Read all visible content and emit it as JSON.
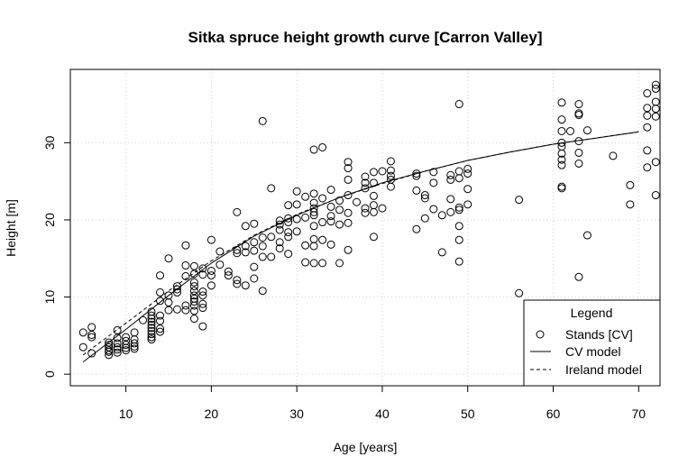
{
  "chart_data": {
    "type": "scatter",
    "title": "Sitka spruce height growth curve [Carron Valley]",
    "xlabel": "Age [years]",
    "ylabel": "Height [m]",
    "xlim": [
      3.5,
      72.5
    ],
    "ylim": [
      -1.5,
      39.5
    ],
    "xticks": [
      10,
      20,
      30,
      40,
      50,
      60,
      70
    ],
    "yticks": [
      0,
      10,
      20,
      30
    ],
    "grid": true,
    "legend": {
      "title": "Legend",
      "position": "bottom-right",
      "entries": [
        {
          "label": "Stands [CV]",
          "symbol": "circle"
        },
        {
          "label": "CV model",
          "symbol": "solid-line"
        },
        {
          "label": "Ireland model",
          "symbol": "dashed-line"
        }
      ]
    },
    "series": [
      {
        "name": "Stands [CV]",
        "kind": "points",
        "points": [
          [
            5,
            5.4
          ],
          [
            5,
            3.5
          ],
          [
            6,
            6.1
          ],
          [
            6,
            5.1
          ],
          [
            6,
            4.8
          ],
          [
            6,
            2.7
          ],
          [
            8,
            4.1
          ],
          [
            8,
            3.8
          ],
          [
            8,
            3.5
          ],
          [
            8,
            3.1
          ],
          [
            8,
            2.9
          ],
          [
            8,
            2.5
          ],
          [
            9,
            5.7
          ],
          [
            9,
            4.7
          ],
          [
            9,
            4.0
          ],
          [
            9,
            3.5
          ],
          [
            9,
            3.2
          ],
          [
            9,
            2.8
          ],
          [
            10,
            4.8
          ],
          [
            10,
            4.3
          ],
          [
            10,
            3.8
          ],
          [
            10,
            3.4
          ],
          [
            10,
            3.1
          ],
          [
            11,
            5.4
          ],
          [
            11,
            4.5
          ],
          [
            11,
            4.0
          ],
          [
            11,
            3.6
          ],
          [
            11,
            3.3
          ],
          [
            12,
            7.0
          ],
          [
            13,
            8.1
          ],
          [
            13,
            7.6
          ],
          [
            13,
            7.2
          ],
          [
            13,
            6.8
          ],
          [
            13,
            6.4
          ],
          [
            13,
            6.0
          ],
          [
            13,
            5.6
          ],
          [
            13,
            5.2
          ],
          [
            13,
            4.8
          ],
          [
            13,
            4.5
          ],
          [
            14,
            12.8
          ],
          [
            14,
            10.6
          ],
          [
            14,
            9.5
          ],
          [
            14,
            7.6
          ],
          [
            14,
            6.9
          ],
          [
            14,
            5.9
          ],
          [
            14,
            5.5
          ],
          [
            15,
            15.0
          ],
          [
            15,
            10.2
          ],
          [
            15,
            9.3
          ],
          [
            15,
            8.3
          ],
          [
            16,
            11.4
          ],
          [
            16,
            11.0
          ],
          [
            16,
            10.6
          ],
          [
            16,
            8.4
          ],
          [
            17,
            16.7
          ],
          [
            17,
            14.1
          ],
          [
            17,
            12.7
          ],
          [
            17,
            8.9
          ],
          [
            17,
            8.3
          ],
          [
            18,
            14.0
          ],
          [
            18,
            13.0
          ],
          [
            18,
            11.9
          ],
          [
            18,
            11.4
          ],
          [
            18,
            10.8
          ],
          [
            18,
            10.2
          ],
          [
            18,
            9.8
          ],
          [
            18,
            9.4
          ],
          [
            18,
            8.9
          ],
          [
            18,
            8.2
          ],
          [
            18,
            7.2
          ],
          [
            19,
            13.7
          ],
          [
            19,
            12.9
          ],
          [
            19,
            10.7
          ],
          [
            19,
            10.2
          ],
          [
            19,
            9.1
          ],
          [
            19,
            8.6
          ],
          [
            19,
            6.2
          ],
          [
            20,
            17.4
          ],
          [
            20,
            13.4
          ],
          [
            20,
            12.8
          ],
          [
            20,
            11.5
          ],
          [
            21,
            15.9
          ],
          [
            21,
            14.2
          ],
          [
            22,
            13.3
          ],
          [
            22,
            12.8
          ],
          [
            23,
            21.0
          ],
          [
            23,
            16.1
          ],
          [
            23,
            15.7
          ],
          [
            23,
            12.2
          ],
          [
            23,
            11.7
          ],
          [
            24,
            19.2
          ],
          [
            24,
            16.6
          ],
          [
            24,
            15.8
          ],
          [
            24,
            11.5
          ],
          [
            25,
            19.5
          ],
          [
            25,
            17.1
          ],
          [
            25,
            16.0
          ],
          [
            25,
            13.9
          ],
          [
            25,
            12.4
          ],
          [
            26,
            32.8
          ],
          [
            26,
            17.7
          ],
          [
            26,
            16.6
          ],
          [
            26,
            15.2
          ],
          [
            26,
            10.8
          ],
          [
            27,
            24.1
          ],
          [
            27,
            17.8
          ],
          [
            27,
            15.2
          ],
          [
            28,
            19.9
          ],
          [
            28,
            19.4
          ],
          [
            28,
            18.7
          ],
          [
            28,
            17.1
          ],
          [
            28,
            16.3
          ],
          [
            29,
            21.9
          ],
          [
            29,
            20.2
          ],
          [
            29,
            19.7
          ],
          [
            29,
            18.4
          ],
          [
            29,
            17.8
          ],
          [
            29,
            15.6
          ],
          [
            30,
            23.7
          ],
          [
            30,
            22.0
          ],
          [
            30,
            20.1
          ],
          [
            30,
            18.5
          ],
          [
            31,
            23.0
          ],
          [
            31,
            20.3
          ],
          [
            31,
            16.7
          ],
          [
            31,
            14.5
          ],
          [
            32,
            29.1
          ],
          [
            32,
            23.4
          ],
          [
            32,
            22.2
          ],
          [
            32,
            21.5
          ],
          [
            32,
            21.0
          ],
          [
            32,
            20.6
          ],
          [
            32,
            19.2
          ],
          [
            32,
            17.5
          ],
          [
            32,
            16.6
          ],
          [
            32,
            14.4
          ],
          [
            33,
            29.4
          ],
          [
            33,
            22.8
          ],
          [
            33,
            19.7
          ],
          [
            33,
            17.4
          ],
          [
            33,
            14.4
          ],
          [
            34,
            23.9
          ],
          [
            34,
            21.7
          ],
          [
            34,
            20.5
          ],
          [
            34,
            19.8
          ],
          [
            34,
            16.8
          ],
          [
            35,
            22.5
          ],
          [
            35,
            21.3
          ],
          [
            35,
            19.4
          ],
          [
            35,
            14.4
          ],
          [
            36,
            27.5
          ],
          [
            36,
            26.7
          ],
          [
            36,
            25.2
          ],
          [
            36,
            23.2
          ],
          [
            36,
            20.9
          ],
          [
            36,
            19.6
          ],
          [
            36,
            16.1
          ],
          [
            37,
            22.3
          ],
          [
            38,
            25.6
          ],
          [
            38,
            24.8
          ],
          [
            38,
            24.1
          ],
          [
            38,
            21.5
          ],
          [
            38,
            20.9
          ],
          [
            39,
            26.2
          ],
          [
            39,
            24.8
          ],
          [
            39,
            23.1
          ],
          [
            39,
            21.9
          ],
          [
            39,
            21.0
          ],
          [
            39,
            17.8
          ],
          [
            40,
            26.3
          ],
          [
            40,
            21.5
          ],
          [
            41,
            27.6
          ],
          [
            41,
            26.4
          ],
          [
            41,
            25.7
          ],
          [
            41,
            25.2
          ],
          [
            41,
            24.3
          ],
          [
            44,
            26.0
          ],
          [
            44,
            25.7
          ],
          [
            44,
            23.8
          ],
          [
            44,
            18.8
          ],
          [
            45,
            23.2
          ],
          [
            45,
            22.8
          ],
          [
            45,
            20.2
          ],
          [
            46,
            26.2
          ],
          [
            46,
            24.8
          ],
          [
            46,
            21.4
          ],
          [
            47,
            20.6
          ],
          [
            47,
            15.8
          ],
          [
            48,
            25.8
          ],
          [
            48,
            25.2
          ],
          [
            48,
            22.7
          ],
          [
            48,
            21.0
          ],
          [
            49,
            35.0
          ],
          [
            49,
            26.3
          ],
          [
            49,
            25.4
          ],
          [
            49,
            21.6
          ],
          [
            49,
            21.3
          ],
          [
            49,
            19.2
          ],
          [
            49,
            17.4
          ],
          [
            49,
            14.6
          ],
          [
            50,
            26.6
          ],
          [
            50,
            26.0
          ],
          [
            50,
            24.0
          ],
          [
            50,
            22.0
          ],
          [
            56,
            22.6
          ],
          [
            56,
            10.5
          ],
          [
            61,
            35.2
          ],
          [
            61,
            33.0
          ],
          [
            61,
            31.5
          ],
          [
            61,
            30.0
          ],
          [
            61,
            29.5
          ],
          [
            61,
            28.6
          ],
          [
            61,
            27.8
          ],
          [
            61,
            27.1
          ],
          [
            61,
            24.3
          ],
          [
            61,
            24.1
          ],
          [
            62,
            31.5
          ],
          [
            63,
            35.0
          ],
          [
            63,
            33.8
          ],
          [
            63,
            33.6
          ],
          [
            63,
            30.2
          ],
          [
            63,
            28.7
          ],
          [
            63,
            27.3
          ],
          [
            63,
            12.6
          ],
          [
            64,
            31.6
          ],
          [
            64,
            18.0
          ],
          [
            67,
            28.3
          ],
          [
            69,
            24.5
          ],
          [
            69,
            22.0
          ],
          [
            71,
            36.4
          ],
          [
            71,
            34.5
          ],
          [
            71,
            33.5
          ],
          [
            71,
            32.0
          ],
          [
            71,
            29.0
          ],
          [
            71,
            26.8
          ],
          [
            72,
            37.5
          ],
          [
            72,
            37.0
          ],
          [
            72,
            35.3
          ],
          [
            72,
            34.4
          ],
          [
            72,
            33.4
          ],
          [
            72,
            27.5
          ],
          [
            72,
            23.2
          ]
        ]
      },
      {
        "name": "CV model",
        "kind": "line",
        "dash": "solid",
        "points": [
          [
            5,
            1.6
          ],
          [
            10,
            5.8
          ],
          [
            15,
            10.2
          ],
          [
            20,
            14.4
          ],
          [
            25,
            17.9
          ],
          [
            30,
            20.6
          ],
          [
            35,
            22.9
          ],
          [
            40,
            24.8
          ],
          [
            45,
            26.3
          ],
          [
            50,
            27.7
          ],
          [
            55,
            28.8
          ],
          [
            60,
            29.8
          ],
          [
            65,
            30.6
          ],
          [
            70,
            31.4
          ]
        ]
      },
      {
        "name": "Ireland model",
        "kind": "line",
        "dash": "dashed",
        "points": [
          [
            5,
            2.5
          ],
          [
            10,
            6.6
          ],
          [
            15,
            10.8
          ],
          [
            20,
            14.7
          ],
          [
            25,
            18.0
          ],
          [
            30,
            20.7
          ],
          [
            35,
            22.9
          ],
          [
            40,
            24.7
          ],
          [
            45,
            26.3
          ],
          [
            50,
            27.7
          ],
          [
            55,
            28.8
          ],
          [
            60,
            29.8
          ],
          [
            65,
            30.6
          ],
          [
            70,
            31.4
          ]
        ]
      }
    ]
  }
}
